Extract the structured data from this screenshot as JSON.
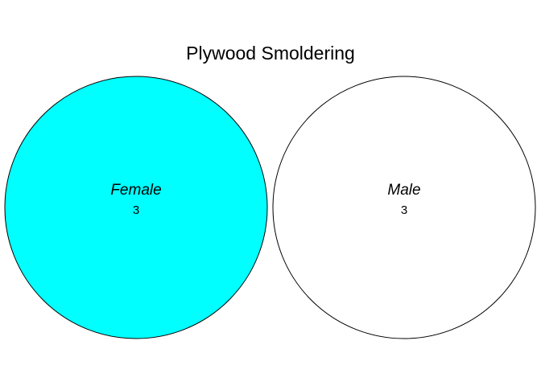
{
  "chart_data": {
    "type": "venn",
    "title": "Plywood Smoldering",
    "sets": [
      {
        "name": "Female",
        "count": "3",
        "fill": "#00FFFF",
        "stroke": "#000000"
      },
      {
        "name": "Male",
        "count": "3",
        "fill": "#FFFFFF",
        "stroke": "#000000"
      }
    ],
    "overlap": 0
  }
}
